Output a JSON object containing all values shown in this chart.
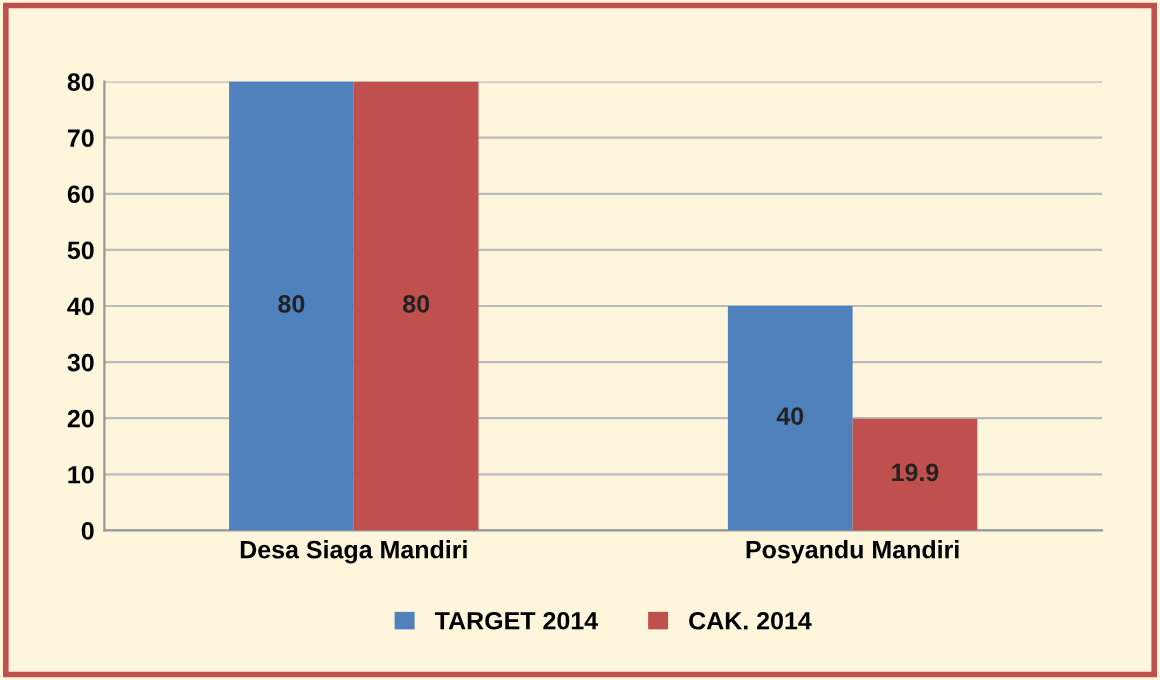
{
  "chart_data": {
    "type": "bar",
    "categories": [
      "Desa Siaga Mandiri",
      "Posyandu Mandiri"
    ],
    "series": [
      {
        "name": "TARGET 2014",
        "color": "#4f81bd",
        "values": [
          80,
          40
        ]
      },
      {
        "name": "CAK. 2014",
        "color": "#c0504d",
        "values": [
          80,
          19.9
        ]
      }
    ],
    "ylim": [
      0,
      80
    ],
    "yticks": [
      0,
      10,
      20,
      30,
      40,
      50,
      60,
      70,
      80
    ],
    "grid": "y",
    "legend": "bottom",
    "data_labels": true
  }
}
